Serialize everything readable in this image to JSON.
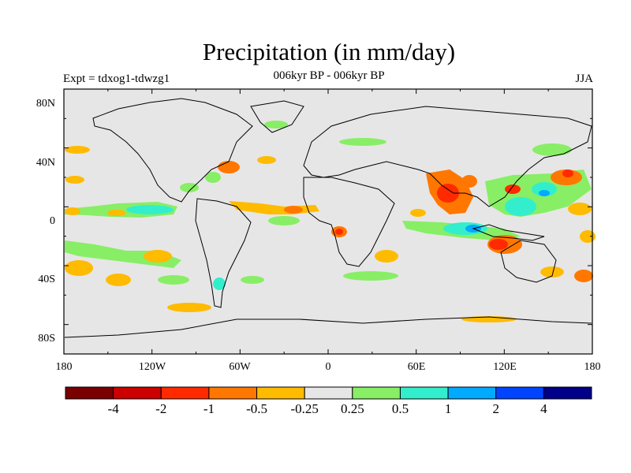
{
  "title": "Precipitation (in mm/day)",
  "subtitle_left": "Expt = tdxog1-tdwzg1",
  "subtitle_center": "006kyr BP - 006kyr BP",
  "subtitle_right": "JJA",
  "lat_labels": [
    "80N",
    "40N",
    "0",
    "40S",
    "80S"
  ],
  "lon_labels": [
    "180",
    "120W",
    "60W",
    "0",
    "60E",
    "120E",
    "180"
  ],
  "colorbar": {
    "colors": [
      "#7a0000",
      "#cc0000",
      "#ff2a00",
      "#ff7700",
      "#ffbb00",
      "#e6e6e6",
      "#88ee66",
      "#33eecc",
      "#00aaff",
      "#0044ff",
      "#000088"
    ],
    "labels": [
      "-4",
      "-2",
      "-1",
      "-0.5",
      "-0.25",
      "0.25",
      "0.5",
      "1",
      "2",
      "4"
    ]
  },
  "colors": {
    "ocean_background": "#e6e6e6",
    "coast": "#000000"
  }
}
